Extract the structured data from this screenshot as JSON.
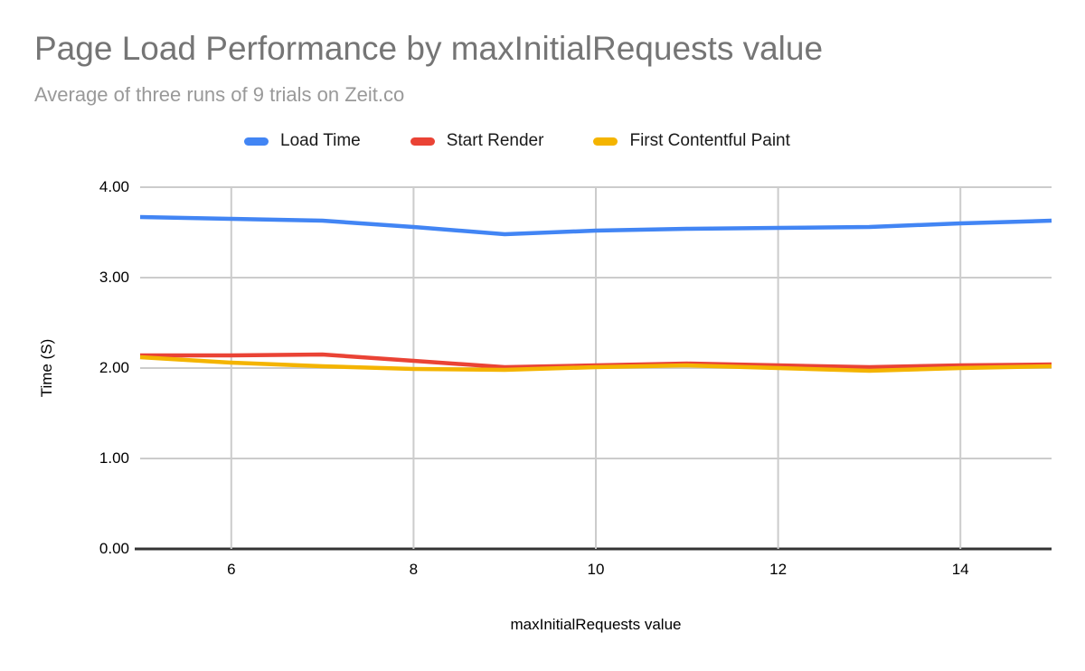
{
  "chart_data": {
    "type": "line",
    "title": "Page Load Performance by maxInitialRequests value",
    "subtitle": "Average of three runs of 9 trials on Zeit.co",
    "xlabel": "maxInitialRequests value",
    "ylabel": "Time (S)",
    "x": [
      5,
      6,
      7,
      8,
      9,
      10,
      11,
      12,
      13,
      14,
      15
    ],
    "series": [
      {
        "name": "Load Time",
        "color": "#4285F4",
        "values": [
          3.67,
          3.65,
          3.63,
          3.56,
          3.48,
          3.52,
          3.54,
          3.55,
          3.56,
          3.6,
          3.63
        ]
      },
      {
        "name": "Start Render",
        "color": "#EA4335",
        "values": [
          2.14,
          2.14,
          2.15,
          2.08,
          2.01,
          2.03,
          2.05,
          2.03,
          2.01,
          2.03,
          2.04
        ]
      },
      {
        "name": "First Contentful Paint",
        "color": "#F4B400",
        "values": [
          2.12,
          2.06,
          2.02,
          1.99,
          1.98,
          2.01,
          2.03,
          2.0,
          1.97,
          2.0,
          2.02
        ]
      }
    ],
    "xlim": [
      5,
      15
    ],
    "ylim": [
      0,
      4
    ],
    "x_ticks": {
      "values": [
        6,
        8,
        10,
        12,
        14
      ],
      "labels": [
        "6",
        "8",
        "10",
        "12",
        "14"
      ]
    },
    "y_ticks": {
      "values": [
        0,
        1,
        2,
        3,
        4
      ],
      "labels": [
        "0.00",
        "1.00",
        "2.00",
        "3.00",
        "4.00"
      ]
    },
    "grid": "on",
    "legend_position": "top"
  },
  "colors": {
    "title_text": "#757575",
    "subtitle_text": "#999999",
    "gridline": "#cccccc",
    "axis_baseline": "#333333",
    "tick_text": "#000000"
  }
}
